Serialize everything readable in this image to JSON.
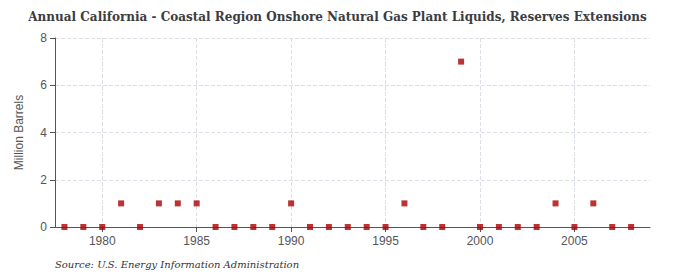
{
  "chart_data": {
    "type": "scatter",
    "title": "Annual California - Coastal Region Onshore Natural Gas Plant Liquids, Reserves Extensions",
    "ylabel": "Million Barrels",
    "source": "Source: U.S. Energy Information Administration",
    "x": [
      1978,
      1979,
      1980,
      1981,
      1982,
      1983,
      1984,
      1985,
      1986,
      1987,
      1988,
      1989,
      1990,
      1991,
      1992,
      1993,
      1994,
      1995,
      1996,
      1997,
      1998,
      1999,
      2000,
      2001,
      2002,
      2003,
      2004,
      2005,
      2006,
      2007,
      2008
    ],
    "values": [
      0,
      0,
      0,
      1,
      0,
      1,
      1,
      1,
      0,
      0,
      0,
      0,
      1,
      0,
      0,
      0,
      0,
      0,
      1,
      0,
      0,
      7,
      0,
      0,
      0,
      0,
      1,
      0,
      1,
      0,
      0
    ],
    "color": "#aa0000",
    "marker": "square",
    "xlim": [
      1977.5,
      2009
    ],
    "xticks": [
      1980,
      1985,
      1990,
      1995,
      2000,
      2005
    ],
    "ylim": [
      0,
      8
    ],
    "yticks": [
      0,
      2,
      4,
      6,
      8
    ],
    "grid": true
  }
}
